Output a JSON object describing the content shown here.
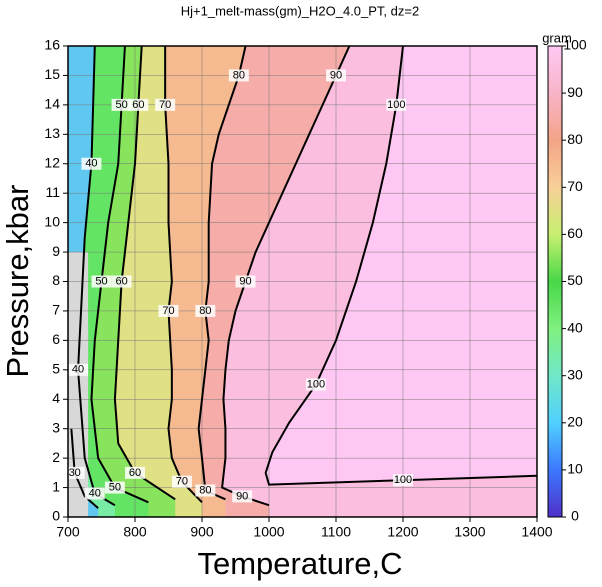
{
  "chart_data": {
    "type": "contour",
    "title": "Hj+1_melt-mass(gm)_H2O_4.0_PT, dz=2",
    "x_label": "Temperature,C",
    "y_label": "Pressure,kbar",
    "colorbar_label": "gram",
    "xlim": [
      700,
      1400
    ],
    "ylim": [
      0,
      16
    ],
    "xticks": [
      700,
      800,
      900,
      1000,
      1100,
      1200,
      1300,
      1400
    ],
    "yticks": [
      0,
      1,
      2,
      3,
      4,
      5,
      6,
      7,
      8,
      9,
      10,
      11,
      12,
      13,
      14,
      15,
      16
    ],
    "clim": [
      0,
      100
    ],
    "cticks": [
      0,
      10,
      20,
      30,
      40,
      50,
      60,
      70,
      80,
      90,
      100
    ],
    "colorscale": [
      [
        0,
        "#5030c8"
      ],
      [
        10,
        "#3c78ff"
      ],
      [
        20,
        "#50d0ff"
      ],
      [
        30,
        "#70e8c8"
      ],
      [
        40,
        "#80f080"
      ],
      [
        50,
        "#48d848"
      ],
      [
        60,
        "#c8f070"
      ],
      [
        70,
        "#f8d098"
      ],
      [
        80,
        "#f4a488"
      ],
      [
        90,
        "#f8b4c8"
      ],
      [
        100,
        "#ffc8f4"
      ]
    ],
    "grid": true,
    "contours": [
      {
        "level": 30,
        "x": [
          745,
          725,
          710,
          705
        ],
        "y": [
          0.3,
          0.7,
          1.5,
          3
        ]
      },
      {
        "level": 40,
        "x": [
          770,
          740,
          725,
          715,
          725,
          735,
          740
        ],
        "y": [
          0.4,
          0.8,
          2,
          5,
          9.5,
          12,
          16
        ]
      },
      {
        "level": 50,
        "x": [
          820,
          770,
          745,
          735,
          740,
          750,
          760,
          775,
          780,
          785
        ],
        "y": [
          0.5,
          1,
          2,
          4,
          6,
          8,
          10,
          12,
          14,
          16
        ]
      },
      {
        "level": 60,
        "x": [
          860,
          800,
          775,
          770,
          775,
          780,
          790,
          800,
          805,
          810
        ],
        "y": [
          0.6,
          1.5,
          2.5,
          4,
          6,
          8,
          10,
          12,
          14,
          16
        ]
      },
      {
        "level": 70,
        "x": [
          900,
          870,
          855,
          850,
          855,
          855,
          850,
          855,
          850,
          850,
          845,
          845
        ],
        "y": [
          0.5,
          1.2,
          2,
          3,
          4,
          5,
          7,
          8,
          10,
          12,
          14,
          16
        ]
      },
      {
        "level": 80,
        "x": [
          935,
          905,
          900,
          895,
          900,
          905,
          910,
          905,
          910,
          910,
          915,
          925,
          940,
          955,
          965
        ],
        "y": [
          0.6,
          0.9,
          2,
          3,
          4,
          5,
          6,
          7,
          8,
          10,
          12,
          13,
          14,
          15,
          16
        ]
      },
      {
        "level": 90,
        "x": [
          1000,
          960,
          930,
          935,
          935,
          932,
          935,
          940,
          950,
          965,
          980,
          1000,
          1020,
          1040,
          1060,
          1080,
          1100,
          1120
        ],
        "y": [
          0.4,
          0.7,
          1,
          2,
          3,
          4,
          5,
          6,
          7,
          8,
          9,
          10,
          11,
          12,
          13,
          14,
          15,
          16
        ]
      },
      {
        "level": 100,
        "x": [
          1400,
          1200,
          1000,
          995,
          1005,
          1030,
          1070,
          1100,
          1130,
          1155,
          1175,
          1190,
          1200
        ],
        "y": [
          1.4,
          1.25,
          1.1,
          1.5,
          2.2,
          3.2,
          4.5,
          6,
          8,
          10,
          12,
          14,
          16
        ]
      }
    ]
  }
}
